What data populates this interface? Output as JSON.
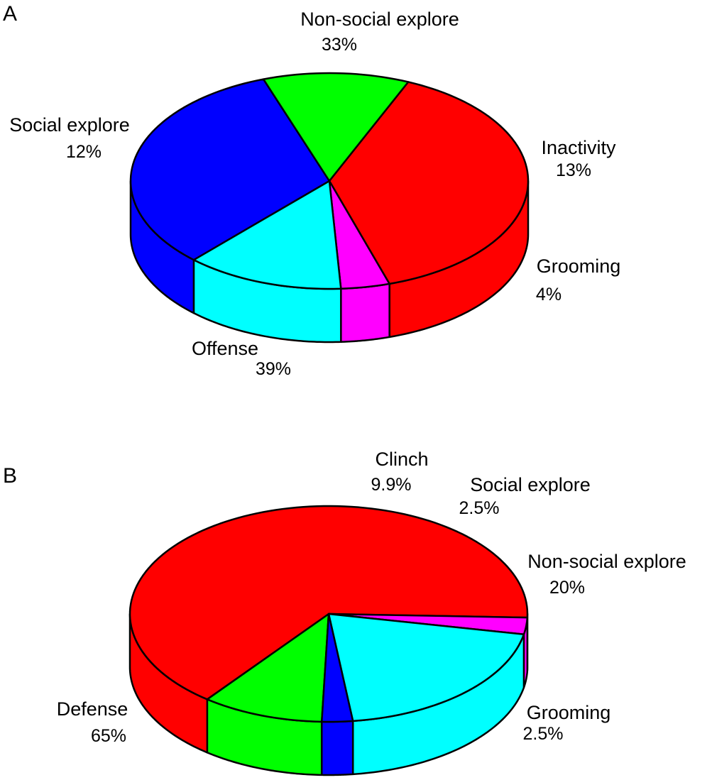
{
  "chart_data": [
    {
      "type": "pie",
      "panel": "A",
      "style": "3d",
      "slices": [
        {
          "label": "Non-social explore",
          "value": 33,
          "value_text": "33%",
          "color": "#0000ff"
        },
        {
          "label": "Social explore",
          "value": 12,
          "value_text": "12%",
          "color": "#00ff00"
        },
        {
          "label": "Offense",
          "value": 39,
          "value_text": "39%",
          "color": "#ff0000"
        },
        {
          "label": "Grooming",
          "value": 4,
          "value_text": "4%",
          "color": "#ff00ff"
        },
        {
          "label": "Inactivity",
          "value": 13,
          "value_text": "13%",
          "color": "#00ffff"
        }
      ]
    },
    {
      "type": "pie",
      "panel": "B",
      "style": "3d",
      "slices": [
        {
          "label": "Clinch",
          "value": 9.9,
          "value_text": "9.9%",
          "color": "#00ff00"
        },
        {
          "label": "Defense",
          "value": 65,
          "value_text": "65%",
          "color": "#ff0000"
        },
        {
          "label": "Grooming",
          "value": 2.5,
          "value_text": "2.5%",
          "color": "#ff00ff"
        },
        {
          "label": "Non-social explore",
          "value": 20,
          "value_text": "20%",
          "color": "#00ffff"
        },
        {
          "label": "Social explore",
          "value": 2.5,
          "value_text": "2.5%",
          "color": "#0000ff"
        }
      ]
    }
  ]
}
